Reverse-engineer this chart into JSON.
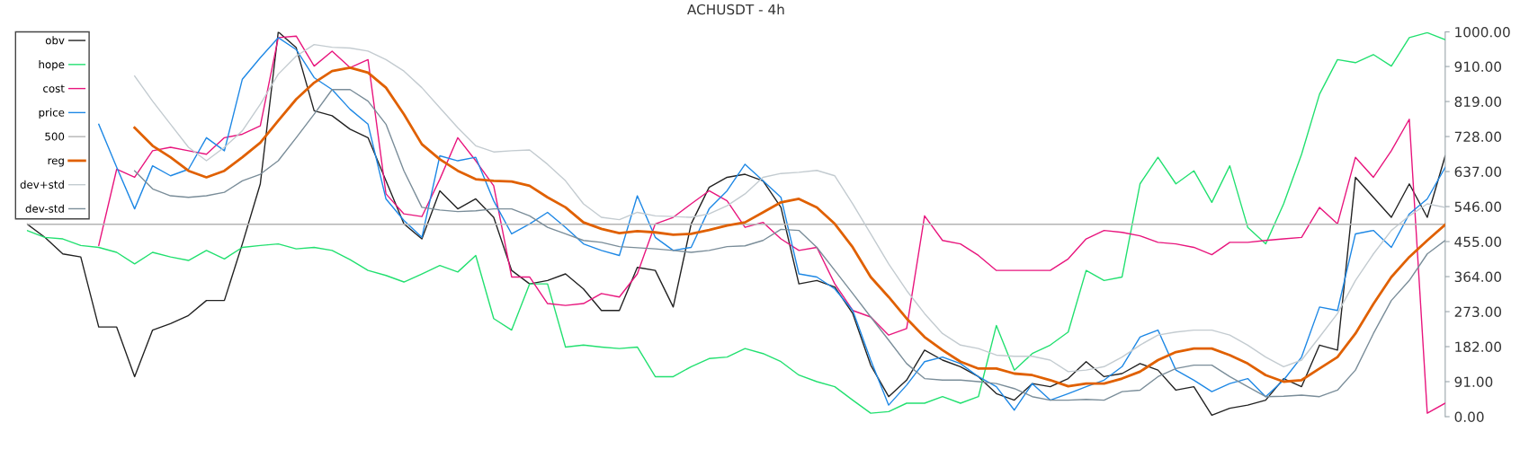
{
  "chart_data": {
    "type": "line",
    "title": "ACHUSDT - 4h",
    "categories": [
      null,
      null,
      null,
      null,
      null,
      null,
      null,
      null,
      null,
      null,
      null,
      null,
      null,
      null,
      null,
      null,
      null,
      null,
      null,
      null,
      null,
      null,
      null,
      null,
      null,
      null,
      null,
      null,
      null,
      null,
      null,
      null,
      null,
      null,
      null,
      null,
      null,
      null,
      null,
      null,
      null,
      null,
      null,
      null,
      null,
      null,
      null,
      null,
      null,
      null,
      null,
      null,
      null,
      null,
      null,
      null,
      null,
      null,
      null,
      null,
      null,
      null,
      null,
      null,
      null,
      null,
      null,
      null,
      null,
      null,
      null,
      null,
      null,
      null,
      null,
      null,
      null,
      null,
      null,
      null
    ],
    "series": [
      {
        "name": "obv",
        "color": "#222222",
        "values": [
          501,
          466,
          423,
          415,
          233,
          233,
          104,
          225,
          242,
          263,
          302,
          302,
          449,
          605,
          1000,
          959,
          795,
          782,
          747,
          725,
          613,
          501,
          462,
          587,
          540,
          566,
          518,
          380,
          345,
          354,
          371,
          332,
          276,
          276,
          388,
          380,
          285,
          501,
          596,
          622,
          630,
          613,
          544,
          345,
          354,
          337,
          268,
          134,
          52,
          95,
          173,
          147,
          130,
          104,
          60,
          43,
          86,
          78,
          99,
          143,
          104,
          112,
          138,
          121,
          69,
          78,
          4,
          22,
          30,
          43,
          99,
          78,
          186,
          173,
          622,
          570,
          518,
          605,
          518,
          678
        ]
      },
      {
        "name": "hope",
        "color": "#22e070",
        "values": [
          484,
          466,
          462,
          445,
          440,
          427,
          397,
          427,
          415,
          406,
          432,
          410,
          440,
          445,
          449,
          436,
          440,
          432,
          408,
          380,
          367,
          350,
          371,
          393,
          376,
          419,
          255,
          225,
          345,
          345,
          181,
          186,
          181,
          177,
          181,
          104,
          104,
          130,
          151,
          155,
          177,
          164,
          143,
          108,
          91,
          78,
          43,
          9,
          13,
          35,
          35,
          52,
          35,
          52,
          237,
          121,
          164,
          186,
          220,
          380,
          354,
          363,
          605,
          674,
          605,
          639,
          557,
          652,
          492,
          449,
          553,
          682,
          838,
          928,
          920,
          941,
          911,
          985,
          998,
          980
        ]
      },
      {
        "name": "cost",
        "color": "#e8157d",
        "values": [
          null,
          null,
          null,
          null,
          445,
          643,
          622,
          691,
          700,
          691,
          682,
          725,
          734,
          756,
          985,
          989,
          911,
          950,
          907,
          928,
          579,
          527,
          520,
          617,
          725,
          665,
          600,
          363,
          363,
          294,
          289,
          294,
          320,
          311,
          371,
          501,
          518,
          553,
          587,
          561,
          492,
          505,
          462,
          432,
          440,
          345,
          276,
          259,
          212,
          229,
          522,
          458,
          449,
          419,
          380,
          380,
          380,
          380,
          410,
          462,
          484,
          479,
          470,
          453,
          449,
          440,
          421,
          453,
          453,
          458,
          462,
          466,
          544,
          501,
          674,
          622,
          691,
          773,
          9,
          35
        ]
      },
      {
        "name": "price",
        "color": "#1e88e5",
        "values": [
          null,
          null,
          null,
          null,
          760,
          648,
          540,
          652,
          626,
          643,
          725,
          691,
          877,
          933,
          985,
          954,
          881,
          850,
          799,
          760,
          566,
          510,
          466,
          678,
          665,
          674,
          561,
          475,
          501,
          531,
          492,
          449,
          432,
          419,
          574,
          466,
          432,
          440,
          540,
          587,
          656,
          613,
          570,
          371,
          363,
          332,
          276,
          147,
          30,
          82,
          143,
          155,
          138,
          104,
          78,
          17,
          86,
          43,
          60,
          78,
          95,
          130,
          207,
          225,
          121,
          95,
          65,
          86,
          99,
          52,
          95,
          155,
          285,
          276,
          475,
          484,
          440,
          527,
          566,
          648
        ]
      },
      {
        "name": "500",
        "color": "#b4b4b4",
        "values": [
          500,
          500,
          500,
          500,
          500,
          500,
          500,
          500,
          500,
          500,
          500,
          500,
          500,
          500,
          500,
          500,
          500,
          500,
          500,
          500,
          500,
          500,
          500,
          500,
          500,
          500,
          500,
          500,
          500,
          500,
          500,
          500,
          500,
          500,
          500,
          500,
          500,
          500,
          500,
          500,
          500,
          500,
          500,
          500,
          500,
          500,
          500,
          500,
          500,
          500,
          500,
          500,
          500,
          500,
          500,
          500,
          500,
          500,
          500,
          500,
          500,
          500,
          500,
          500,
          500,
          500,
          500,
          500,
          500,
          500,
          500,
          500,
          500,
          500,
          500,
          500,
          500,
          500,
          500,
          500
        ]
      },
      {
        "name": "reg",
        "color": "#e06000",
        "values": [
          null,
          null,
          null,
          null,
          null,
          null,
          751,
          704,
          674,
          639,
          622,
          639,
          674,
          712,
          769,
          825,
          868,
          898,
          907,
          894,
          855,
          786,
          708,
          669,
          639,
          617,
          613,
          611,
          600,
          570,
          544,
          505,
          488,
          477,
          482,
          479,
          473,
          475,
          485,
          497,
          505,
          531,
          557,
          566,
          544,
          501,
          440,
          363,
          311,
          255,
          207,
          173,
          143,
          125,
          125,
          112,
          108,
          95,
          79,
          86,
          86,
          99,
          117,
          147,
          168,
          177,
          177,
          160,
          138,
          108,
          91,
          95,
          125,
          155,
          216,
          293,
          363,
          415,
          458,
          499
        ]
      },
      {
        "name": "dev+std",
        "color": "#c3cbd0",
        "values": [
          null,
          null,
          null,
          null,
          null,
          null,
          885,
          820,
          760,
          700,
          665,
          700,
          743,
          812,
          890,
          937,
          967,
          960,
          958,
          950,
          928,
          898,
          855,
          803,
          751,
          704,
          688,
          691,
          693,
          656,
          613,
          553,
          518,
          512,
          531,
          522,
          520,
          518,
          527,
          548,
          579,
          622,
          632,
          635,
          640,
          626,
          553,
          475,
          397,
          328,
          268,
          216,
          186,
          177,
          160,
          157,
          157,
          147,
          117,
          121,
          130,
          155,
          186,
          212,
          220,
          225,
          225,
          212,
          186,
          155,
          130,
          147,
          207,
          268,
          354,
          423,
          484,
          522,
          553,
          544
        ]
      },
      {
        "name": "dev-std",
        "color": "#7a8d99",
        "values": [
          null,
          null,
          null,
          null,
          null,
          null,
          639,
          592,
          574,
          570,
          574,
          583,
          613,
          630,
          665,
          725,
          786,
          850,
          850,
          820,
          760,
          639,
          544,
          537,
          533,
          535,
          540,
          540,
          522,
          492,
          475,
          458,
          453,
          442,
          439,
          436,
          432,
          427,
          432,
          442,
          444,
          458,
          487,
          484,
          440,
          380,
          320,
          259,
          199,
          138,
          99,
          95,
          95,
          91,
          86,
          73,
          52,
          43,
          43,
          45,
          43,
          65,
          69,
          104,
          125,
          134,
          134,
          104,
          78,
          52,
          53,
          56,
          52,
          69,
          121,
          216,
          302,
          354,
          423,
          458
        ]
      }
    ],
    "ylim": [
      0,
      1000
    ],
    "yticks": [
      {
        "value": 0,
        "label": "0.00"
      },
      {
        "value": 91,
        "label": "91.00"
      },
      {
        "value": 182,
        "label": "182.00"
      },
      {
        "value": 273,
        "label": "273.00"
      },
      {
        "value": 364,
        "label": "364.00"
      },
      {
        "value": 455,
        "label": "455.00"
      },
      {
        "value": 546,
        "label": "546.00"
      },
      {
        "value": 637,
        "label": "637.00"
      },
      {
        "value": 728,
        "label": "728.00"
      },
      {
        "value": 819,
        "label": "819.00"
      },
      {
        "value": 910,
        "label": "910.00"
      },
      {
        "value": 1000,
        "label": "1000.00"
      }
    ],
    "tick_labels": "y",
    "grid": false,
    "legend": "top left",
    "marker": "none",
    "line_style": "solid"
  }
}
